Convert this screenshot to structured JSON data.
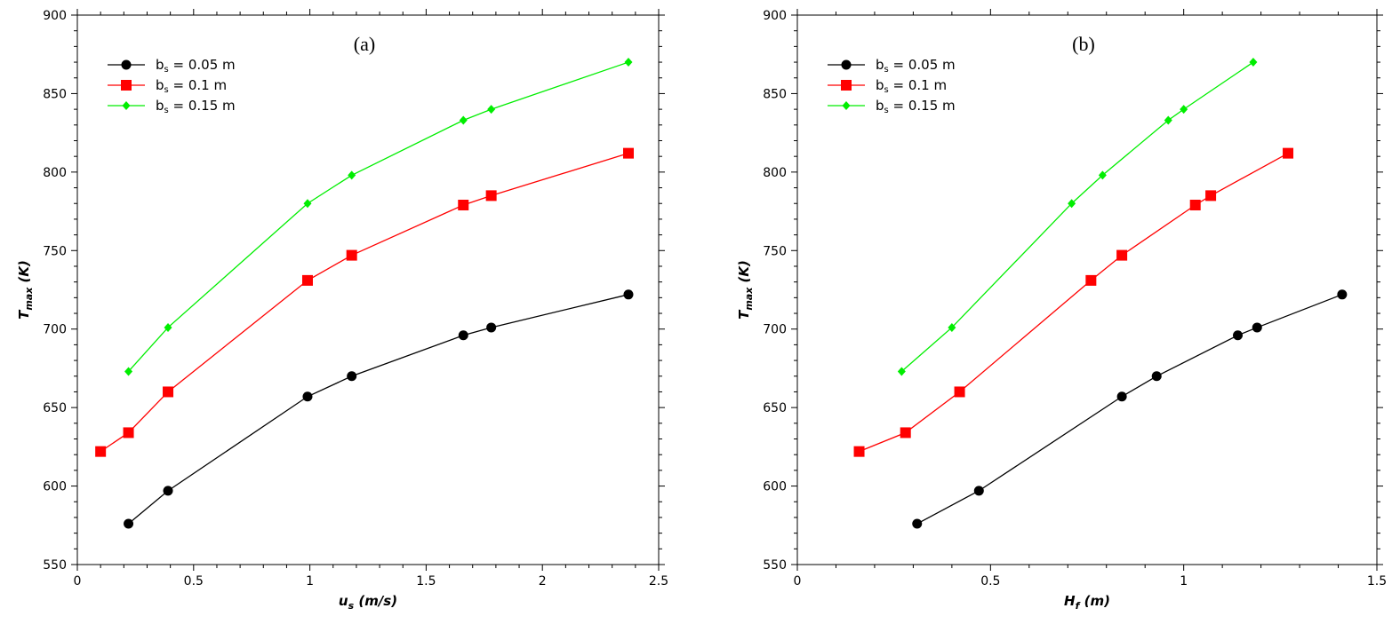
{
  "chart_data": [
    {
      "type": "line",
      "panel_label": "(a)",
      "xlabel": {
        "main": "u",
        "sub": "s",
        "unit": " (m/s)"
      },
      "ylabel": {
        "main": "T",
        "sub": "max",
        "unit": " (K)"
      },
      "xlim": [
        0,
        2.5
      ],
      "ylim": [
        550,
        900
      ],
      "xticks": [
        "0",
        "0.5",
        "1",
        "1.5",
        "2",
        "2.5"
      ],
      "yticks": [
        "550",
        "600",
        "650",
        "700",
        "750",
        "800",
        "850",
        "900"
      ],
      "legend_position": "top-left",
      "series": [
        {
          "name": "b = 0.05 m",
          "legend": {
            "pre": "b",
            "sub": "s",
            "post": " = 0.05 m"
          },
          "color": "#000000",
          "marker": "circle",
          "x": [
            0.22,
            0.39,
            0.99,
            1.18,
            1.66,
            1.78,
            2.37
          ],
          "y": [
            576,
            597,
            657,
            670,
            696,
            701,
            722
          ]
        },
        {
          "name": "b = 0.1 m",
          "legend": {
            "pre": "b",
            "sub": "s",
            "post": " = 0.1 m"
          },
          "color": "#ff0000",
          "marker": "square",
          "x": [
            0.1,
            0.22,
            0.39,
            0.99,
            1.18,
            1.66,
            1.78,
            2.37
          ],
          "y": [
            622,
            634,
            660,
            731,
            747,
            779,
            785,
            812
          ]
        },
        {
          "name": "b = 0.15 m",
          "legend": {
            "pre": "b",
            "sub": "s",
            "post": " = 0.15 m"
          },
          "color": "#00ee00",
          "marker": "diamond",
          "x": [
            0.22,
            0.39,
            0.99,
            1.18,
            1.66,
            1.78,
            2.37
          ],
          "y": [
            673,
            701,
            780,
            798,
            833,
            840,
            870
          ]
        }
      ]
    },
    {
      "type": "line",
      "panel_label": "(b)",
      "xlabel": {
        "main": "H",
        "sub": "f",
        "unit": " (m)"
      },
      "ylabel": {
        "main": "T",
        "sub": "max",
        "unit": " (K)"
      },
      "xlim": [
        0,
        1.5
      ],
      "ylim": [
        550,
        900
      ],
      "xticks": [
        "0",
        "0.5",
        "1",
        "1.5"
      ],
      "yticks": [
        "550",
        "600",
        "650",
        "700",
        "750",
        "800",
        "850",
        "900"
      ],
      "legend_position": "top-left",
      "series": [
        {
          "name": "b = 0.05 m",
          "legend": {
            "pre": "b",
            "sub": "s",
            "post": " = 0.05 m"
          },
          "color": "#000000",
          "marker": "circle",
          "x": [
            0.31,
            0.47,
            0.84,
            0.93,
            1.14,
            1.19,
            1.41
          ],
          "y": [
            576,
            597,
            657,
            670,
            696,
            701,
            722
          ]
        },
        {
          "name": "b = 0.1 m",
          "legend": {
            "pre": "b",
            "sub": "s",
            "post": " = 0.1 m"
          },
          "color": "#ff0000",
          "marker": "square",
          "x": [
            0.16,
            0.28,
            0.42,
            0.76,
            0.84,
            1.03,
            1.07,
            1.27
          ],
          "y": [
            622,
            634,
            660,
            731,
            747,
            779,
            785,
            812
          ]
        },
        {
          "name": "b = 0.15 m",
          "legend": {
            "pre": "b",
            "sub": "s",
            "post": " = 0.15 m"
          },
          "color": "#00ee00",
          "marker": "diamond",
          "x": [
            0.27,
            0.4,
            0.71,
            0.79,
            0.96,
            1.0,
            1.18
          ],
          "y": [
            673,
            701,
            780,
            798,
            833,
            840,
            870
          ]
        }
      ]
    }
  ]
}
